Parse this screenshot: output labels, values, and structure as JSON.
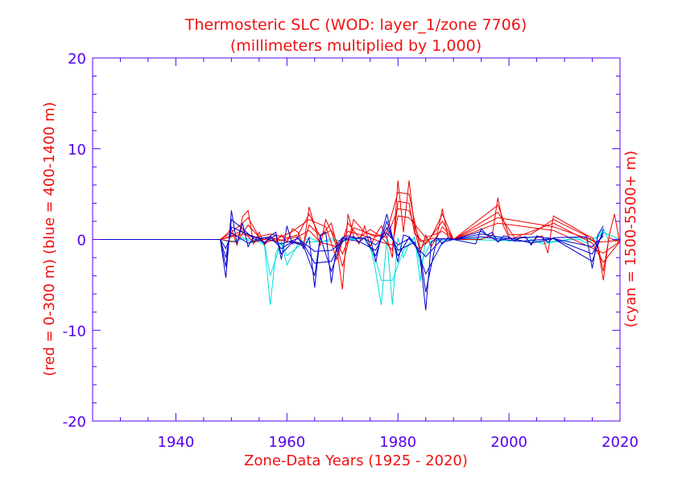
{
  "chart_data": {
    "type": "line",
    "title": "Thermosteric SLC (WOD: layer_1/zone 7706)",
    "subtitle": "(millimeters multiplied by 1,000)",
    "xlabel": "Zone-Data Years (1925 - 2020)",
    "ylabel_left": "(red = 0-300 m)  (blue = 400-1400 m)",
    "ylabel_right": "(cyan = 1500-5500+ m)",
    "xlim": [
      1925,
      2020
    ],
    "ylim": [
      -20,
      20
    ],
    "x_ticks": [
      1940,
      1960,
      1980,
      2000,
      2020
    ],
    "y_ticks": [
      -20,
      -10,
      0,
      10,
      20
    ],
    "grid": false,
    "colors": {
      "axis": "#5500ee",
      "title": "#ee1111",
      "red": "#ee0000",
      "blue": "#0000cc",
      "cyan": "#00dddd"
    },
    "series": [
      {
        "color": "red",
        "x": [
          1925,
          1948,
          1949,
          1950,
          1951,
          1952,
          1953,
          1954,
          1955,
          1956,
          1957,
          1958,
          1959,
          1960,
          1961,
          1962,
          1963,
          1964,
          1965,
          1966,
          1967,
          1968,
          1969,
          1970,
          1971,
          1972,
          1973,
          1974,
          1975,
          1976,
          1977,
          1978,
          1979,
          1980,
          1981,
          1982,
          1983,
          1984,
          1985,
          1986,
          1987,
          1988,
          1989,
          1990,
          1995,
          1996,
          1997,
          1998,
          1999,
          2000,
          2001,
          2002,
          2003,
          2004,
          2005,
          2006,
          2007,
          2008,
          2014,
          2015,
          2016,
          2017,
          2018,
          2019,
          2020
        ],
        "values": [
          0,
          0,
          0.5,
          1.2,
          -0.6,
          2.5,
          3.2,
          -0.5,
          0.8,
          -0.6,
          0.4,
          -0.2,
          0.5,
          -0.3,
          1.2,
          0.8,
          -0.8,
          3.6,
          1.5,
          -0.7,
          2.2,
          0.9,
          -1.0,
          -5.5,
          2.8,
          0.4,
          -0.5,
          1.5,
          -0.8,
          0.5,
          1.5,
          0.2,
          -2.0,
          6.5,
          0.8,
          6.5,
          1.2,
          -1.5,
          0.5,
          -0.8,
          0.3,
          3.4,
          0.2,
          0,
          0,
          0.3,
          0.5,
          4.6,
          1.5,
          0.2,
          -0.2,
          0.3,
          0.2,
          -0.5,
          0.2,
          0.4,
          -1.5,
          2.6,
          0.5,
          0.2,
          -0.8,
          -4.5,
          0.3,
          2.8,
          -0.5
        ]
      },
      {
        "color": "red",
        "x": [
          1948,
          1950,
          1952,
          1953,
          1955,
          1957,
          1960,
          1962,
          1964,
          1966,
          1968,
          1970,
          1972,
          1974,
          1976,
          1978,
          1980,
          1982,
          1984,
          1986,
          1988,
          1990,
          1998,
          2000,
          2004,
          2008,
          2014,
          2016,
          2017,
          2018,
          2020
        ],
        "values": [
          0,
          0.8,
          1.8,
          2.4,
          0.3,
          0.6,
          0.2,
          0.5,
          2.8,
          0.3,
          1.8,
          -3.0,
          2.2,
          0.8,
          0.3,
          0.8,
          5.2,
          5.0,
          -1.0,
          0.3,
          2.8,
          0,
          3.8,
          0.5,
          0.6,
          2.2,
          0.4,
          -0.6,
          -3.5,
          0.2,
          -0.3
        ]
      },
      {
        "color": "red",
        "x": [
          1948,
          1951,
          1953,
          1956,
          1959,
          1961,
          1964,
          1967,
          1969,
          1971,
          1973,
          1975,
          1977,
          1979,
          1980,
          1982,
          1983,
          1985,
          1988,
          1990,
          1998,
          2001,
          2008,
          2015,
          2017,
          2020
        ],
        "values": [
          0,
          -0.3,
          1.6,
          -0.4,
          0.3,
          0.9,
          2.2,
          1.4,
          -2.2,
          1.8,
          0.2,
          1.1,
          0.3,
          -1.2,
          4.2,
          4.0,
          0.6,
          -0.5,
          2.0,
          0,
          3.0,
          0.2,
          1.8,
          -0.4,
          -2.5,
          -0.2
        ]
      },
      {
        "color": "red",
        "x": [
          1948,
          1950,
          1952,
          1954,
          1957,
          1960,
          1963,
          1964,
          1966,
          1968,
          1970,
          1972,
          1975,
          1978,
          1980,
          1982,
          1984,
          1987,
          1988,
          1990,
          1998,
          2008,
          2016,
          2020
        ],
        "values": [
          0,
          0.4,
          1.0,
          -0.3,
          0.2,
          -0.2,
          -0.5,
          1.6,
          0.4,
          1.0,
          -1.6,
          1.3,
          0.6,
          0.2,
          3.4,
          3.2,
          -0.2,
          0.2,
          1.4,
          0,
          2.4,
          1.4,
          -0.3,
          -0.1
        ]
      },
      {
        "color": "red",
        "x": [
          1948,
          1952,
          1955,
          1958,
          1962,
          1964,
          1966,
          1969,
          1971,
          1974,
          1977,
          1979,
          1980,
          1982,
          1985,
          1988,
          1990,
          1998,
          2008,
          2017,
          2020
        ],
        "values": [
          0,
          0.6,
          0.1,
          -0.2,
          0.3,
          1.0,
          -0.3,
          -0.8,
          0.9,
          0.4,
          -0.3,
          -0.6,
          2.6,
          2.4,
          0.2,
          0.9,
          0,
          1.8,
          1.0,
          -1.5,
          -0.2
        ]
      },
      {
        "color": "blue",
        "x": [
          1925,
          1948,
          1949,
          1950,
          1951,
          1952,
          1953,
          1954,
          1955,
          1956,
          1957,
          1958,
          1959,
          1960,
          1961,
          1962,
          1963,
          1964,
          1965,
          1966,
          1967,
          1968,
          1969,
          1970,
          1971,
          1972,
          1973,
          1974,
          1975,
          1976,
          1977,
          1978,
          1979,
          1980,
          1981,
          1982,
          1983,
          1984,
          1985,
          1986,
          1987,
          1988,
          1989,
          1990,
          1994,
          1995,
          1996,
          1997,
          1998,
          1999,
          2000,
          2001,
          2002,
          2003,
          2004,
          2005,
          2006,
          2007,
          2008,
          2014,
          2015,
          2016,
          2017
        ],
        "values": [
          0,
          0,
          -4.2,
          3.2,
          -0.5,
          1.8,
          -0.8,
          0.3,
          0.2,
          -0.5,
          0.4,
          0.8,
          -2.2,
          1.5,
          -0.5,
          0.3,
          -1.0,
          0.2,
          -5.3,
          0.5,
          0.8,
          -4.8,
          -0.5,
          0.2,
          0.4,
          0.3,
          -0.3,
          0.2,
          0.3,
          -2.5,
          0.5,
          2.8,
          0.3,
          -2.5,
          0.5,
          0.3,
          -0.4,
          -2.0,
          -7.8,
          -0.3,
          0.2,
          -0.5,
          0.2,
          0,
          -0.5,
          1.2,
          0.5,
          0.8,
          -0.3,
          0.4,
          0.3,
          -0.2,
          0.2,
          0.3,
          -0.6,
          0.4,
          0.2,
          -0.3,
          0.2,
          0.3,
          -3.2,
          0.5,
          1.5
        ]
      },
      {
        "color": "blue",
        "x": [
          1948,
          1949,
          1950,
          1952,
          1954,
          1956,
          1958,
          1959,
          1961,
          1963,
          1965,
          1966,
          1968,
          1970,
          1972,
          1974,
          1976,
          1978,
          1980,
          1982,
          1984,
          1985,
          1987,
          1990,
          1995,
          1998,
          2000,
          2004,
          2008,
          2015,
          2017
        ],
        "values": [
          0,
          -3.0,
          2.2,
          1.2,
          0.1,
          -0.3,
          0.5,
          -1.6,
          -0.3,
          -0.7,
          -4.0,
          0.3,
          -3.5,
          0.1,
          0.2,
          0.1,
          -1.8,
          2.0,
          -1.8,
          0.2,
          -1.5,
          -5.8,
          0.1,
          0,
          0.9,
          -0.2,
          0.2,
          -0.4,
          0.1,
          -2.4,
          1.1
        ]
      },
      {
        "color": "blue",
        "x": [
          1948,
          1949,
          1950,
          1952,
          1955,
          1957,
          1959,
          1961,
          1963,
          1965,
          1968,
          1970,
          1973,
          1976,
          1978,
          1980,
          1983,
          1985,
          1988,
          1990,
          1995,
          2000,
          2005,
          2008,
          2015,
          2017
        ],
        "values": [
          0,
          -2.0,
          1.4,
          0.8,
          0.1,
          0.3,
          -1.0,
          -0.2,
          -0.5,
          -2.6,
          -2.4,
          0.1,
          -0.2,
          -1.2,
          1.3,
          -1.2,
          -0.3,
          -3.8,
          -0.3,
          0,
          0.6,
          0.1,
          0.3,
          0.1,
          -1.6,
          0.7
        ]
      },
      {
        "color": "blue",
        "x": [
          1948,
          1949,
          1950,
          1953,
          1956,
          1959,
          1962,
          1965,
          1968,
          1971,
          1974,
          1976,
          1978,
          1980,
          1982,
          1985,
          1988,
          1990,
          1995,
          2002,
          2008,
          2015,
          2017
        ],
        "values": [
          0,
          -1.0,
          0.7,
          -0.4,
          0.2,
          -0.5,
          0.1,
          -1.3,
          -1.2,
          0.2,
          0.1,
          -0.6,
          0.7,
          -0.6,
          0.1,
          -1.9,
          0.1,
          0,
          0.3,
          -0.2,
          0.1,
          -0.8,
          0.4
        ]
      },
      {
        "color": "cyan",
        "x": [
          1925,
          1948,
          1950,
          1952,
          1954,
          1955,
          1956,
          1957,
          1958,
          1959,
          1960,
          1962,
          1964,
          1966,
          1968,
          1970,
          1972,
          1974,
          1975,
          1976,
          1977,
          1978,
          1979,
          1980,
          1981,
          1982,
          1983,
          1984,
          1985,
          1986,
          1988,
          1990,
          1995,
          1998,
          2000,
          2003,
          2006,
          2008,
          2012,
          2014,
          2016,
          2017,
          2018,
          2020
        ],
        "values": [
          0,
          0,
          -0.3,
          0.2,
          -0.4,
          0.3,
          -0.8,
          -7.2,
          -1.5,
          -0.3,
          -2.8,
          -0.5,
          0.2,
          -0.3,
          0.1,
          -0.2,
          0.1,
          0.2,
          -0.5,
          -3.5,
          -7.2,
          0.2,
          -7.2,
          0.2,
          -2.0,
          -0.5,
          0.3,
          -4.6,
          0.2,
          -0.3,
          0.1,
          0,
          0.1,
          0.3,
          -0.2,
          0.3,
          -0.5,
          -0.3,
          0.2,
          -0.4,
          0.3,
          1.2,
          -0.2,
          0
        ]
      },
      {
        "color": "cyan",
        "x": [
          1948,
          1950,
          1953,
          1956,
          1957,
          1959,
          1960,
          1963,
          1966,
          1970,
          1974,
          1976,
          1977,
          1979,
          1981,
          1983,
          1984,
          1986,
          1990,
          2000,
          2006,
          2016,
          2017,
          2020
        ],
        "values": [
          0,
          -0.2,
          0.1,
          -0.5,
          -4.0,
          -0.2,
          -1.8,
          -0.3,
          -0.2,
          -0.1,
          0.1,
          -2.2,
          -4.5,
          -4.5,
          -1.2,
          0.2,
          -2.8,
          -0.2,
          0,
          -0.1,
          -0.3,
          0.2,
          0.8,
          0
        ]
      }
    ]
  }
}
